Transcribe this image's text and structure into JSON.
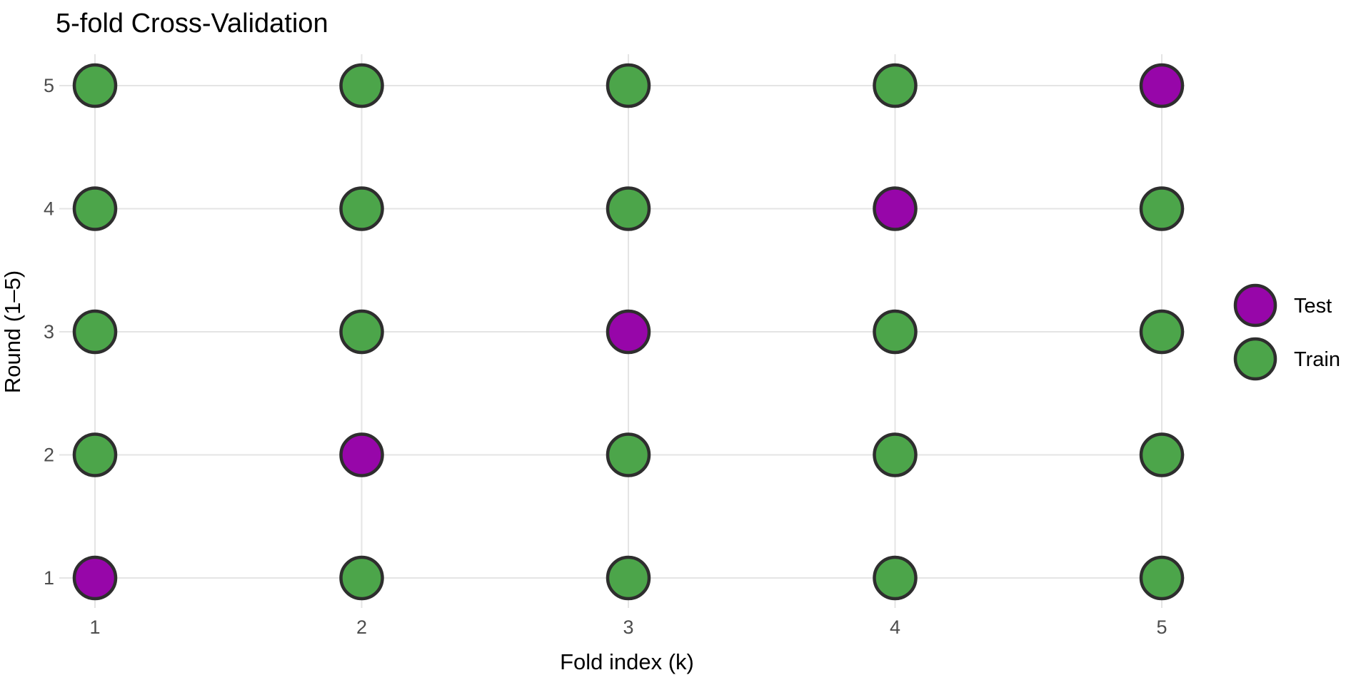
{
  "chart_data": {
    "type": "scatter",
    "title": "5-fold Cross-Validation",
    "xlabel": "Fold index (k)",
    "ylabel": "Round (1–5)",
    "x_ticks": [
      "1",
      "2",
      "3",
      "4",
      "5"
    ],
    "y_ticks": [
      "1",
      "2",
      "3",
      "4",
      "5"
    ],
    "xlim": [
      1,
      5
    ],
    "ylim": [
      1,
      5
    ],
    "grid": true,
    "legend": {
      "position": "right",
      "entries": [
        {
          "label": "Test",
          "key": "test",
          "color": "#9706A9"
        },
        {
          "label": "Train",
          "key": "train",
          "color": "#4CA54A"
        }
      ]
    },
    "series": [
      {
        "name": "Test",
        "points": [
          {
            "x": 1,
            "y": 1
          },
          {
            "x": 2,
            "y": 2
          },
          {
            "x": 3,
            "y": 3
          },
          {
            "x": 4,
            "y": 4
          },
          {
            "x": 5,
            "y": 5
          }
        ]
      },
      {
        "name": "Train",
        "points": [
          {
            "x": 2,
            "y": 1
          },
          {
            "x": 3,
            "y": 1
          },
          {
            "x": 4,
            "y": 1
          },
          {
            "x": 5,
            "y": 1
          },
          {
            "x": 1,
            "y": 2
          },
          {
            "x": 3,
            "y": 2
          },
          {
            "x": 4,
            "y": 2
          },
          {
            "x": 5,
            "y": 2
          },
          {
            "x": 1,
            "y": 3
          },
          {
            "x": 2,
            "y": 3
          },
          {
            "x": 4,
            "y": 3
          },
          {
            "x": 5,
            "y": 3
          },
          {
            "x": 1,
            "y": 4
          },
          {
            "x": 2,
            "y": 4
          },
          {
            "x": 3,
            "y": 4
          },
          {
            "x": 5,
            "y": 4
          },
          {
            "x": 1,
            "y": 5
          },
          {
            "x": 2,
            "y": 5
          },
          {
            "x": 3,
            "y": 5
          },
          {
            "x": 4,
            "y": 5
          }
        ]
      }
    ],
    "colors": {
      "test": "#9706A9",
      "train": "#4CA54A",
      "marker_outline": "#2E2E2E",
      "gridline": "#E4E4E4",
      "tick_label": "#4D4D4D",
      "text": "#000000",
      "background": "#FFFFFF"
    }
  }
}
